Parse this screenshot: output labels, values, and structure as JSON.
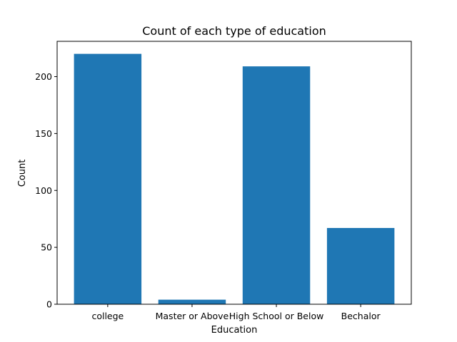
{
  "chart_data": {
    "type": "bar",
    "title": "Count of each type of education",
    "xlabel": "Education",
    "ylabel": "Count",
    "categories": [
      "college",
      "Master or Above",
      "High School or Below",
      "Bechalor"
    ],
    "values": [
      220,
      4,
      209,
      67
    ],
    "ylim": [
      0,
      231
    ],
    "yticks": [
      0,
      50,
      100,
      150,
      200
    ],
    "grid": false,
    "bar_color": "#1f77b4"
  }
}
